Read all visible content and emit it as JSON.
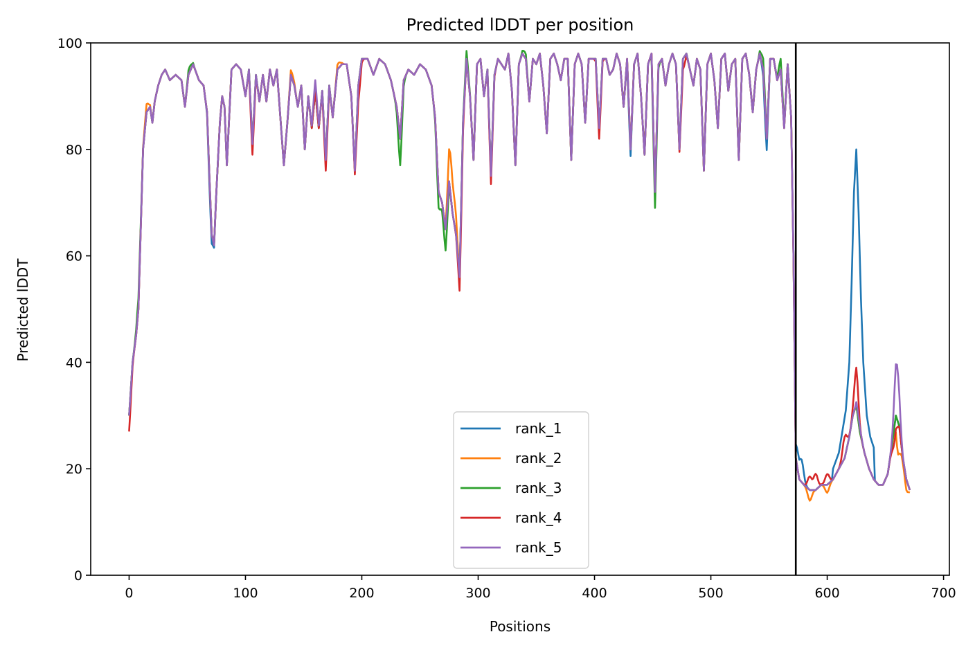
{
  "chart_data": {
    "type": "line",
    "title": "Predicted lDDT per position",
    "xlabel": "Positions",
    "ylabel": "Predicted lDDT",
    "xlim": [
      -33,
      705
    ],
    "ylim": [
      0,
      100
    ],
    "xticks": [
      0,
      100,
      200,
      300,
      400,
      500,
      600,
      700
    ],
    "yticks": [
      0,
      20,
      40,
      60,
      80,
      100
    ],
    "grid": false,
    "legend_position": "lower center",
    "vline_x": 573,
    "series_colors": [
      "#1f77b4",
      "#ff7f0e",
      "#2ca02c",
      "#d62728",
      "#9467bd"
    ],
    "shared_profile": [
      [
        0,
        30
      ],
      [
        3,
        40
      ],
      [
        6,
        45
      ],
      [
        8,
        50
      ],
      [
        10,
        65
      ],
      [
        12,
        80
      ],
      [
        15,
        87
      ],
      [
        18,
        88
      ],
      [
        20,
        85
      ],
      [
        22,
        89
      ],
      [
        25,
        92
      ],
      [
        28,
        94
      ],
      [
        31,
        95
      ],
      [
        35,
        93
      ],
      [
        40,
        94
      ],
      [
        45,
        93
      ],
      [
        48,
        88
      ],
      [
        51,
        94
      ],
      [
        55,
        96
      ],
      [
        60,
        93
      ],
      [
        64,
        92
      ],
      [
        67,
        87
      ],
      [
        69,
        75
      ],
      [
        71,
        64
      ],
      [
        73,
        62
      ],
      [
        75,
        72
      ],
      [
        78,
        85
      ],
      [
        80,
        90
      ],
      [
        82,
        88
      ],
      [
        84,
        77
      ],
      [
        86,
        86
      ],
      [
        88,
        95
      ],
      [
        92,
        96
      ],
      [
        96,
        95
      ],
      [
        100,
        90
      ],
      [
        103,
        95
      ],
      [
        106,
        81
      ],
      [
        109,
        94
      ],
      [
        112,
        89
      ],
      [
        115,
        94
      ],
      [
        118,
        89
      ],
      [
        121,
        95
      ],
      [
        124,
        92
      ],
      [
        127,
        95
      ],
      [
        130,
        86
      ],
      [
        133,
        77
      ],
      [
        136,
        85
      ],
      [
        139,
        94
      ],
      [
        142,
        92
      ],
      [
        145,
        88
      ],
      [
        148,
        92
      ],
      [
        151,
        80
      ],
      [
        154,
        90
      ],
      [
        157,
        84
      ],
      [
        160,
        91
      ],
      [
        163,
        84
      ],
      [
        166,
        91
      ],
      [
        169,
        78
      ],
      [
        172,
        92
      ],
      [
        175,
        86
      ],
      [
        179,
        95
      ],
      [
        183,
        96
      ],
      [
        187,
        96
      ],
      [
        191,
        90
      ],
      [
        194,
        76
      ],
      [
        197,
        92
      ],
      [
        200,
        97
      ],
      [
        205,
        97
      ],
      [
        210,
        94
      ],
      [
        215,
        97
      ],
      [
        220,
        96
      ],
      [
        225,
        93
      ],
      [
        230,
        88
      ],
      [
        233,
        82
      ],
      [
        236,
        93
      ],
      [
        240,
        95
      ],
      [
        245,
        94
      ],
      [
        250,
        96
      ],
      [
        255,
        95
      ],
      [
        260,
        92
      ],
      [
        263,
        86
      ],
      [
        266,
        72
      ],
      [
        269,
        70
      ],
      [
        272,
        65
      ],
      [
        275,
        74
      ],
      [
        278,
        68
      ],
      [
        281,
        64
      ],
      [
        284,
        56
      ],
      [
        287,
        85
      ],
      [
        290,
        97
      ],
      [
        293,
        90
      ],
      [
        296,
        78
      ],
      [
        299,
        96
      ],
      [
        302,
        97
      ],
      [
        305,
        90
      ],
      [
        308,
        95
      ],
      [
        311,
        75
      ],
      [
        314,
        94
      ],
      [
        317,
        97
      ],
      [
        320,
        96
      ],
      [
        323,
        95
      ],
      [
        326,
        98
      ],
      [
        329,
        91
      ],
      [
        332,
        77
      ],
      [
        335,
        96
      ],
      [
        338,
        98
      ],
      [
        341,
        97
      ],
      [
        344,
        89
      ],
      [
        347,
        97
      ],
      [
        350,
        96
      ],
      [
        353,
        98
      ],
      [
        356,
        92
      ],
      [
        359,
        83
      ],
      [
        362,
        97
      ],
      [
        365,
        98
      ],
      [
        368,
        96
      ],
      [
        371,
        93
      ],
      [
        374,
        97
      ],
      [
        377,
        97
      ],
      [
        380,
        78
      ],
      [
        383,
        96
      ],
      [
        386,
        98
      ],
      [
        389,
        96
      ],
      [
        392,
        85
      ],
      [
        395,
        97
      ],
      [
        398,
        97
      ],
      [
        401,
        97
      ],
      [
        404,
        84
      ],
      [
        407,
        97
      ],
      [
        410,
        97
      ],
      [
        413,
        94
      ],
      [
        416,
        95
      ],
      [
        419,
        98
      ],
      [
        422,
        96
      ],
      [
        425,
        88
      ],
      [
        428,
        97
      ],
      [
        431,
        80
      ],
      [
        434,
        96
      ],
      [
        437,
        98
      ],
      [
        440,
        90
      ],
      [
        443,
        79
      ],
      [
        446,
        96
      ],
      [
        449,
        98
      ],
      [
        452,
        72
      ],
      [
        455,
        96
      ],
      [
        458,
        97
      ],
      [
        461,
        92
      ],
      [
        464,
        96
      ],
      [
        467,
        98
      ],
      [
        470,
        96
      ],
      [
        473,
        80
      ],
      [
        476,
        97
      ],
      [
        479,
        98
      ],
      [
        482,
        95
      ],
      [
        485,
        92
      ],
      [
        488,
        97
      ],
      [
        491,
        95
      ],
      [
        494,
        76
      ],
      [
        497,
        96
      ],
      [
        500,
        98
      ],
      [
        503,
        93
      ],
      [
        506,
        84
      ],
      [
        509,
        97
      ],
      [
        512,
        98
      ],
      [
        515,
        91
      ],
      [
        518,
        96
      ],
      [
        521,
        97
      ],
      [
        524,
        78
      ],
      [
        527,
        97
      ],
      [
        530,
        98
      ],
      [
        533,
        94
      ],
      [
        536,
        87
      ],
      [
        539,
        95
      ],
      [
        542,
        98
      ],
      [
        545,
        95
      ],
      [
        548,
        82
      ],
      [
        551,
        97
      ],
      [
        554,
        97
      ],
      [
        557,
        93
      ],
      [
        560,
        95
      ],
      [
        563,
        84
      ],
      [
        566,
        96
      ],
      [
        569,
        86
      ],
      [
        571,
        60
      ],
      [
        573,
        22
      ],
      [
        576,
        18
      ],
      [
        580,
        17
      ],
      [
        585,
        16
      ],
      [
        590,
        16
      ],
      [
        595,
        17
      ],
      [
        600,
        17
      ],
      [
        605,
        18
      ],
      [
        610,
        20
      ],
      [
        615,
        22
      ],
      [
        619,
        26
      ],
      [
        622,
        30
      ],
      [
        625,
        32
      ],
      [
        628,
        27
      ],
      [
        632,
        23
      ],
      [
        636,
        20
      ],
      [
        640,
        18
      ],
      [
        644,
        17
      ],
      [
        648,
        17
      ],
      [
        652,
        19
      ],
      [
        656,
        25
      ],
      [
        659,
        30
      ],
      [
        662,
        28
      ],
      [
        665,
        22
      ],
      [
        668,
        18
      ],
      [
        671,
        16
      ]
    ],
    "series": [
      {
        "name": "rank_1",
        "color": "#1f77b4",
        "offset_points": [
          [
            70,
            -2
          ],
          [
            430,
            -1.5
          ],
          [
            547,
            -2.5
          ],
          [
            574,
            3
          ],
          [
            578,
            4
          ]
        ],
        "peak_points": [
          [
            605,
            20
          ],
          [
            610,
            23
          ],
          [
            613,
            27
          ],
          [
            616,
            31
          ],
          [
            619,
            40
          ],
          [
            621,
            55
          ],
          [
            623,
            72
          ],
          [
            625,
            80
          ],
          [
            627,
            68
          ],
          [
            629,
            52
          ],
          [
            631,
            40
          ],
          [
            634,
            30
          ],
          [
            637,
            26
          ],
          [
            640,
            24
          ]
        ]
      },
      {
        "name": "rank_2",
        "color": "#ff7f0e",
        "offset_points": [
          [
            15,
            1.5
          ],
          [
            140,
            1
          ],
          [
            180,
            1
          ],
          [
            276,
            7
          ],
          [
            280,
            4
          ],
          [
            585,
            -2
          ],
          [
            600,
            -1.5
          ],
          [
            661,
            -6
          ],
          [
            668,
            -2
          ]
        ]
      },
      {
        "name": "rank_3",
        "color": "#2ca02c",
        "offset_points": [
          [
            8,
            2
          ],
          [
            52,
            1
          ],
          [
            233,
            -5
          ],
          [
            266,
            -3
          ],
          [
            272,
            -4
          ],
          [
            290,
            1.5
          ],
          [
            340,
            1
          ],
          [
            452,
            -3
          ],
          [
            545,
            2
          ],
          [
            560,
            2
          ]
        ]
      },
      {
        "name": "rank_4",
        "color": "#d62728",
        "offset_points": [
          [
            0,
            -3
          ],
          [
            106,
            -2
          ],
          [
            169,
            -2
          ],
          [
            197,
            -3
          ],
          [
            285,
            -3
          ],
          [
            311,
            -1.5
          ],
          [
            404,
            -2
          ],
          [
            476,
            -2
          ],
          [
            585,
            2.5
          ],
          [
            590,
            3
          ],
          [
            600,
            2
          ],
          [
            615,
            4
          ],
          [
            625,
            7
          ],
          [
            658,
            -3
          ]
        ]
      },
      {
        "name": "rank_5",
        "color": "#9467bd",
        "offset_points": [
          [
            160,
            2
          ],
          [
            627,
            1
          ],
          [
            659,
            7
          ],
          [
            661,
            5
          ]
        ]
      }
    ]
  }
}
